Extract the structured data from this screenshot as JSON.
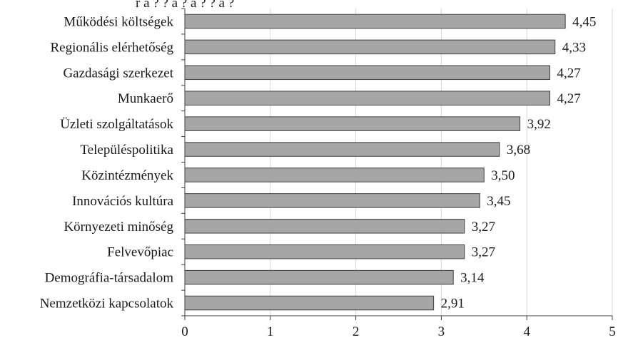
{
  "chart_data": {
    "type": "bar",
    "orientation": "horizontal",
    "title": "",
    "xlabel": "",
    "ylabel": "",
    "categories": [
      "Működési költségek",
      "Regionális elérhetőség",
      "Gazdasági szerkezet",
      "Munkaerő",
      "Üzleti szolgáltatások",
      "Településpolitika",
      "Közintézmények",
      "Innovációs kultúra",
      "Környezeti minőség",
      "Felvevőpiac",
      "Demográfia-társadalom",
      "Nemzetközi kapcsolatok"
    ],
    "values": [
      4.45,
      4.33,
      4.27,
      4.27,
      3.92,
      3.68,
      3.5,
      3.45,
      3.27,
      3.27,
      3.14,
      2.91
    ],
    "value_labels": [
      "4,45",
      "4,33",
      "4,27",
      "4,27",
      "3,92",
      "3,68",
      "3,50",
      "3,45",
      "3,27",
      "3,27",
      "3,14",
      "2,91"
    ],
    "xlim": [
      0,
      5
    ],
    "ticks": [
      0,
      1,
      2,
      3,
      4,
      5
    ],
    "tick_labels": [
      "0",
      "1",
      "2",
      "3",
      "4",
      "5"
    ],
    "grid": true,
    "bar_color": "#a6a6a6",
    "bar_edge_color": "#404040",
    "grid_color": "#d9d9d9"
  }
}
